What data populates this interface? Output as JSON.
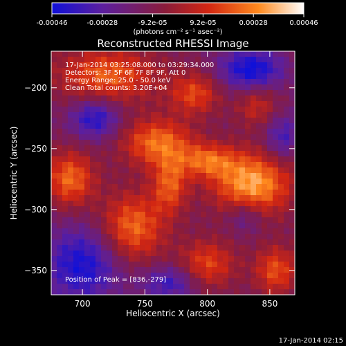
{
  "chart_data": {
    "type": "heatmap",
    "title": "Reconstructed RHESSI Image",
    "xlabel": "Heliocentric X (arcsec)",
    "ylabel": "Heliocentric Y (arcsec)",
    "xlim": [
      675,
      870
    ],
    "ylim": [
      -370,
      -170
    ],
    "x_ticks": [
      700,
      750,
      800,
      850
    ],
    "y_ticks": [
      -200,
      -250,
      -300,
      -350
    ],
    "colorbar": {
      "ticks": [
        "-0.00046",
        "-0.00028",
        "-9.2e-05",
        "9.2e-05",
        "0.00028",
        "0.00046"
      ],
      "unit_label": "(photons cm⁻² s⁻¹ asec⁻²)",
      "range": [
        -0.00046,
        0.00046
      ],
      "colors": [
        "#1010d8",
        "#5c1f9e",
        "#8a1c3a",
        "#d22612",
        "#ff8a1e",
        "#ffffff"
      ]
    },
    "annotations": [
      "17-Jan-2014 03:25:08.000 to 03:29:34.000",
      "Detectors: 3F 5F 6F 7F 8F 9F, Att 0",
      "Energy Range: 25.0 - 50.0 keV",
      "Clean     Total counts: 3.20E+04"
    ],
    "peak_label": "Position of Peak = [836,-279]",
    "peak": [
      836,
      -279
    ],
    "sources": [
      {
        "x": 720,
        "y": -190,
        "amp": 0.00033,
        "sx": 28,
        "sy": 16
      },
      {
        "x": 790,
        "y": -205,
        "amp": 0.00028,
        "sx": 14,
        "sy": 12
      },
      {
        "x": 760,
        "y": -245,
        "amp": 0.00036,
        "sx": 20,
        "sy": 14
      },
      {
        "x": 690,
        "y": -275,
        "amp": 0.00035,
        "sx": 14,
        "sy": 16
      },
      {
        "x": 770,
        "y": -280,
        "amp": 0.0003,
        "sx": 10,
        "sy": 16
      },
      {
        "x": 800,
        "y": -260,
        "amp": 0.0003,
        "sx": 16,
        "sy": 10
      },
      {
        "x": 836,
        "y": -279,
        "amp": 0.00046,
        "sx": 22,
        "sy": 18
      },
      {
        "x": 740,
        "y": -315,
        "amp": 0.00036,
        "sx": 18,
        "sy": 20
      },
      {
        "x": 800,
        "y": -345,
        "amp": 0.00028,
        "sx": 16,
        "sy": 14
      },
      {
        "x": 855,
        "y": -350,
        "amp": 0.0003,
        "sx": 12,
        "sy": 14
      },
      {
        "x": 840,
        "y": -215,
        "amp": 0.0002,
        "sx": 12,
        "sy": 12
      },
      {
        "x": 710,
        "y": -225,
        "amp": -0.0003,
        "sx": 14,
        "sy": 12
      },
      {
        "x": 835,
        "y": -185,
        "amp": -0.00035,
        "sx": 18,
        "sy": 12
      },
      {
        "x": 700,
        "y": -345,
        "amp": -0.00032,
        "sx": 22,
        "sy": 22
      },
      {
        "x": 770,
        "y": -360,
        "amp": -0.00025,
        "sx": 16,
        "sy": 10
      },
      {
        "x": 830,
        "y": -305,
        "amp": -0.00018,
        "sx": 10,
        "sy": 10
      },
      {
        "x": 860,
        "y": -240,
        "amp": -0.00022,
        "sx": 10,
        "sy": 14
      }
    ]
  },
  "footer_timestamp": "17-Jan-2014 02:15"
}
